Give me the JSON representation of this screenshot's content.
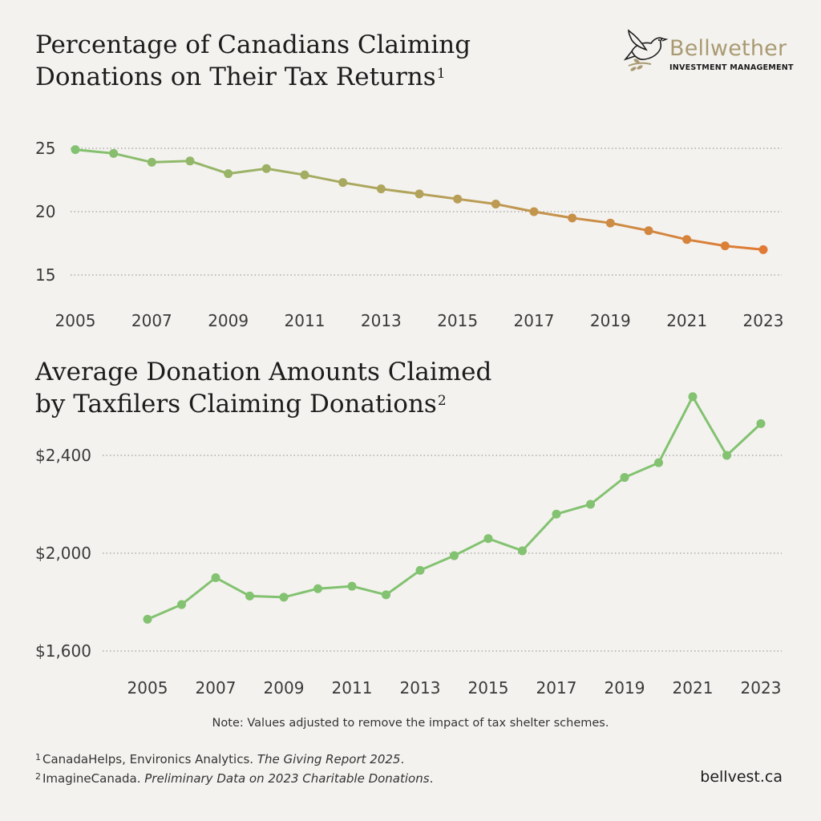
{
  "brand": {
    "name": "Bellwether",
    "tagline": "INVESTMENT MANAGEMENT",
    "icon": "bird-on-branch-icon",
    "colors": {
      "gold": "#a99a72",
      "dark": "#1c1c1c"
    }
  },
  "chart_data": [
    {
      "type": "line",
      "title": "Percentage of Canadians Claiming Donations on Their Tax Returns",
      "title_line1": "Percentage of Canadians Claiming",
      "title_line2": "Donations on Their Tax Returns",
      "footnote_marker": "1",
      "x": [
        2005,
        2006,
        2007,
        2008,
        2009,
        2010,
        2011,
        2012,
        2013,
        2014,
        2015,
        2016,
        2017,
        2018,
        2019,
        2020,
        2021,
        2022,
        2023
      ],
      "values": [
        24.9,
        24.6,
        23.9,
        24.0,
        23.0,
        23.4,
        22.9,
        22.3,
        21.8,
        21.4,
        21.0,
        20.6,
        20.0,
        19.5,
        19.1,
        18.5,
        17.8,
        17.3,
        17.0
      ],
      "y_ticks": [
        "25",
        "20",
        "15"
      ],
      "y_tick_values": [
        25,
        20,
        15
      ],
      "x_tick_labels": [
        "2005",
        "2007",
        "2009",
        "2011",
        "2013",
        "2015",
        "2017",
        "2019",
        "2021",
        "2023"
      ],
      "ylim": [
        14,
        26
      ],
      "grid": "dotted horizontal",
      "colors": {
        "start": "#82c270",
        "middle": "#b3a25a",
        "end": "#e07a34"
      }
    },
    {
      "type": "line",
      "title": "Average Donation Amounts Claimed by Taxfilers Claiming Donations",
      "title_line1": "Average Donation Amounts Claimed",
      "title_line2": "by Taxfilers Claiming Donations",
      "footnote_marker": "2",
      "x": [
        2005,
        2006,
        2007,
        2008,
        2009,
        2010,
        2011,
        2012,
        2013,
        2014,
        2015,
        2016,
        2017,
        2018,
        2019,
        2020,
        2021,
        2022,
        2023
      ],
      "values": [
        1730,
        1790,
        1900,
        1825,
        1820,
        1855,
        1865,
        1830,
        1930,
        1990,
        2060,
        2010,
        2160,
        2200,
        2310,
        2370,
        2640,
        2400,
        2530
      ],
      "y_ticks": [
        "$2,400",
        "$2,000",
        "$1,600"
      ],
      "y_tick_values": [
        2400,
        2000,
        1600
      ],
      "x_tick_labels": [
        "2005",
        "2007",
        "2009",
        "2011",
        "2013",
        "2015",
        "2017",
        "2019",
        "2021",
        "2023"
      ],
      "ylim": [
        1500,
        2700
      ],
      "grid": "dotted horizontal",
      "colors": {
        "line": "#82c270"
      }
    }
  ],
  "note": "Note: Values adjusted to remove the impact of tax shelter schemes.",
  "sources": [
    {
      "marker": "1",
      "text": "CanadaHelps, Environics Analytics. ",
      "italic": "The Giving Report 2025",
      "end": "."
    },
    {
      "marker": "2",
      "text": "ImagineCanada. ",
      "italic": "Preliminary Data on 2023 Charitable Donations",
      "end": "."
    }
  ],
  "website": "bellvest.ca"
}
